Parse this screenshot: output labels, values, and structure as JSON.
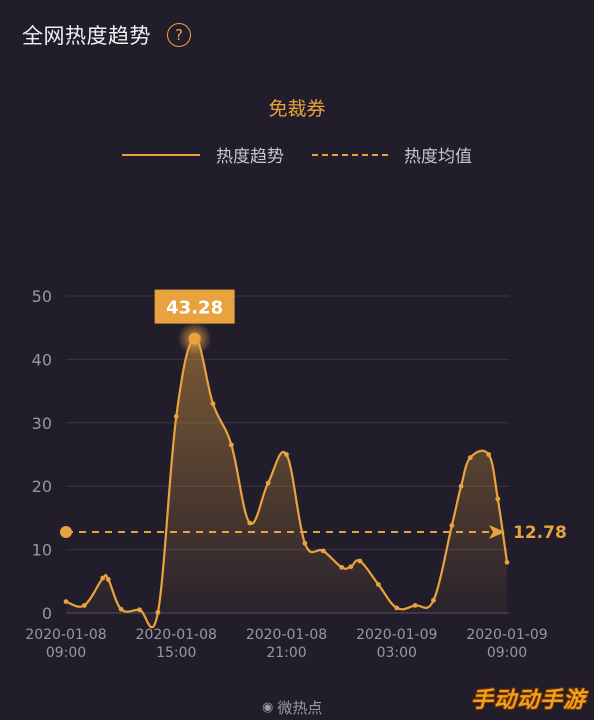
{
  "header": {
    "title": "全网热度趋势",
    "help_glyph": "?"
  },
  "colors": {
    "accent": "#e9a33e",
    "background": "#211d2b",
    "grid": "#3a3645",
    "axis_text": "#9a96a3"
  },
  "chart_data": {
    "type": "area",
    "title": "免裁券",
    "legend": [
      "热度趋势",
      "热度均值"
    ],
    "legend_position": "top-center",
    "grid": true,
    "ylim": [
      0,
      50
    ],
    "yticks": [
      0,
      10,
      20,
      30,
      40,
      50
    ],
    "xticks": [
      "2020-01-08\n09:00",
      "2020-01-08\n15:00",
      "2020-01-08\n21:00",
      "2020-01-09\n03:00",
      "2020-01-09\n09:00"
    ],
    "x_hours": [
      0,
      1,
      2,
      2.3,
      3,
      4,
      5,
      6,
      7,
      8,
      9,
      10,
      11,
      12,
      13,
      14,
      15,
      15.5,
      16,
      17,
      18,
      19,
      20,
      21,
      21.5,
      22,
      23,
      23.5,
      24
    ],
    "series": [
      {
        "name": "热度趋势",
        "values": [
          1.8,
          1.2,
          5.5,
          5.3,
          0.6,
          0.5,
          0.1,
          31,
          43.28,
          33,
          26.5,
          14.2,
          20.5,
          25,
          11,
          9.8,
          7.2,
          7.3,
          8.2,
          4.5,
          0.8,
          1.2,
          2,
          13.8,
          20,
          24.5,
          25,
          18,
          8
        ]
      }
    ],
    "peak": {
      "label": "43.28",
      "value": 43.28,
      "x_hour": 7
    },
    "mean": {
      "label": "12.78",
      "value": 12.78
    }
  },
  "footer": {
    "source": "微热点",
    "watermark": "手动动手游"
  }
}
